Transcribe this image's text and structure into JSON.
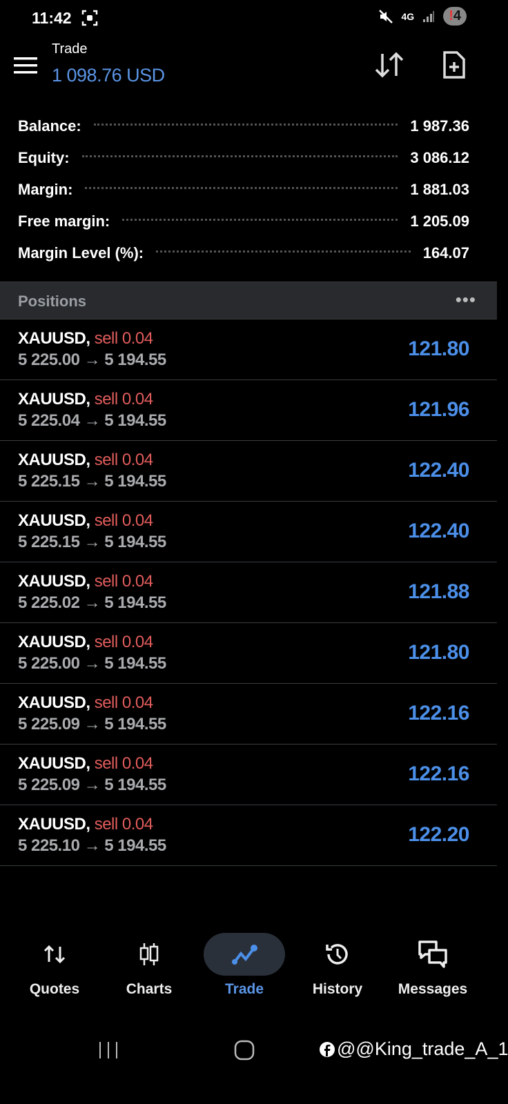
{
  "status_bar": {
    "time": "11:42",
    "network": "4G",
    "notification_count": "4"
  },
  "header": {
    "title": "Trade",
    "subtitle": "1 098.76 USD"
  },
  "summary": [
    {
      "label": "Balance:",
      "value": "1 987.36"
    },
    {
      "label": "Equity:",
      "value": "3 086.12"
    },
    {
      "label": "Margin:",
      "value": "1 881.03"
    },
    {
      "label": "Free margin:",
      "value": "1 205.09"
    },
    {
      "label": "Margin Level (%):",
      "value": "164.07"
    }
  ],
  "positions": {
    "title": "Positions",
    "more": "•••",
    "items": [
      {
        "symbol": "XAUUSD,",
        "side": "sell 0.04",
        "prices": "5 225.00 → 5 194.55",
        "profit": "121.80"
      },
      {
        "symbol": "XAUUSD,",
        "side": "sell 0.04",
        "prices": "5 225.04 → 5 194.55",
        "profit": "121.96"
      },
      {
        "symbol": "XAUUSD,",
        "side": "sell 0.04",
        "prices": "5 225.15 → 5 194.55",
        "profit": "122.40"
      },
      {
        "symbol": "XAUUSD,",
        "side": "sell 0.04",
        "prices": "5 225.15 → 5 194.55",
        "profit": "122.40"
      },
      {
        "symbol": "XAUUSD,",
        "side": "sell 0.04",
        "prices": "5 225.02 → 5 194.55",
        "profit": "121.88"
      },
      {
        "symbol": "XAUUSD,",
        "side": "sell 0.04",
        "prices": "5 225.00 → 5 194.55",
        "profit": "121.80"
      },
      {
        "symbol": "XAUUSD,",
        "side": "sell 0.04",
        "prices": "5 225.09 → 5 194.55",
        "profit": "122.16"
      },
      {
        "symbol": "XAUUSD,",
        "side": "sell 0.04",
        "prices": "5 225.09 → 5 194.55",
        "profit": "122.16"
      },
      {
        "symbol": "XAUUSD,",
        "side": "sell 0.04",
        "prices": "5 225.10 → 5 194.55",
        "profit": "122.20"
      }
    ]
  },
  "nav": [
    {
      "label": "Quotes"
    },
    {
      "label": "Charts"
    },
    {
      "label": "Trade",
      "active": true
    },
    {
      "label": "History"
    },
    {
      "label": "Messages"
    }
  ],
  "watermark": "@@King_trade_A_1",
  "colors": {
    "accent": "#4c8fe8",
    "sell": "#e25c5c",
    "background": "#000000",
    "section": "#282a2d"
  }
}
